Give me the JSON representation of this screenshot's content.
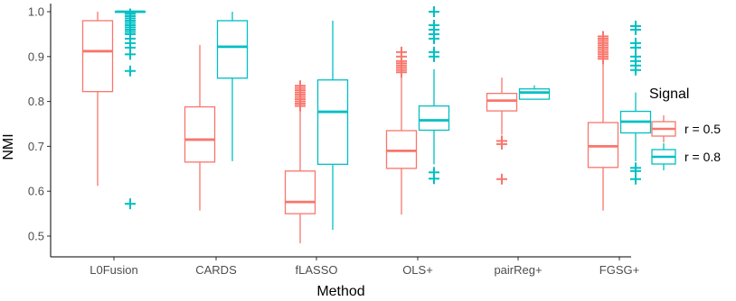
{
  "chart_data": {
    "type": "boxplot",
    "xlabel": "Method",
    "ylabel": "NMI",
    "ylim": [
      0.475,
      1.01
    ],
    "yticks": [
      0.5,
      0.6,
      0.7,
      0.8,
      0.9,
      1.0
    ],
    "ytick_labels": [
      "0.5",
      "0.6",
      "0.7",
      "0.8",
      "0.9",
      "1.0"
    ],
    "categories": [
      "L0Fusion",
      "CARDS",
      "fLASSO",
      "OLS+",
      "pairReg+",
      "FGSG+"
    ],
    "grid": false,
    "legend": {
      "title": "Signal",
      "position": "right",
      "entries": [
        {
          "label": "r = 0.5",
          "color": "#F8766D"
        },
        {
          "label": "r = 0.8",
          "color": "#00BFC4"
        }
      ]
    },
    "series": [
      {
        "name": "r = 0.5",
        "color": "#F8766D",
        "boxes": [
          {
            "category": "L0Fusion",
            "whisker_low": 0.612,
            "q1": 0.822,
            "median": 0.912,
            "q3": 0.98,
            "whisker_high": 1.0,
            "outliers": []
          },
          {
            "category": "CARDS",
            "whisker_low": 0.557,
            "q1": 0.665,
            "median": 0.715,
            "q3": 0.788,
            "whisker_high": 0.926,
            "outliers": []
          },
          {
            "category": "fLASSO",
            "whisker_low": 0.484,
            "q1": 0.55,
            "median": 0.576,
            "q3": 0.645,
            "whisker_high": 0.785,
            "outliers": [
              0.79,
              0.795,
              0.8,
              0.805,
              0.81,
              0.815,
              0.82,
              0.825,
              0.83,
              0.835
            ]
          },
          {
            "category": "OLS+",
            "whisker_low": 0.548,
            "q1": 0.651,
            "median": 0.69,
            "q3": 0.735,
            "whisker_high": 0.86,
            "outliers": [
              0.865,
              0.87,
              0.875,
              0.88,
              0.885,
              0.89,
              0.9,
              0.91
            ]
          },
          {
            "category": "pairReg+",
            "whisker_low": 0.726,
            "q1": 0.779,
            "median": 0.802,
            "q3": 0.818,
            "whisker_high": 0.853,
            "outliers": [
              0.627,
              0.705,
              0.712
            ]
          },
          {
            "category": "FGSG+",
            "whisker_low": 0.557,
            "q1": 0.653,
            "median": 0.7,
            "q3": 0.753,
            "whisker_high": 0.89,
            "outliers": [
              0.895,
              0.9,
              0.905,
              0.91,
              0.915,
              0.92,
              0.925,
              0.93,
              0.935,
              0.94,
              0.945
            ]
          }
        ]
      },
      {
        "name": "r = 0.8",
        "color": "#00BFC4",
        "boxes": [
          {
            "category": "L0Fusion",
            "whisker_low": 1.0,
            "q1": 1.0,
            "median": 1.0,
            "q3": 1.0,
            "whisker_high": 1.0,
            "outliers": [
              0.572,
              0.868,
              0.905,
              0.92,
              0.93,
              0.94,
              0.95,
              0.955,
              0.96,
              0.965,
              0.97,
              0.975,
              0.98,
              0.985,
              0.99,
              0.995
            ]
          },
          {
            "category": "CARDS",
            "whisker_low": 0.667,
            "q1": 0.852,
            "median": 0.922,
            "q3": 0.98,
            "whisker_high": 1.0,
            "outliers": []
          },
          {
            "category": "fLASSO",
            "whisker_low": 0.514,
            "q1": 0.66,
            "median": 0.777,
            "q3": 0.848,
            "whisker_high": 0.98,
            "outliers": []
          },
          {
            "category": "OLS+",
            "whisker_low": 0.66,
            "q1": 0.736,
            "median": 0.758,
            "q3": 0.79,
            "whisker_high": 0.872,
            "outliers": [
              0.628,
              0.642,
              0.9,
              0.91,
              0.94,
              0.95,
              0.96,
              0.97,
              1.0
            ]
          },
          {
            "category": "pairReg+",
            "whisker_low": 0.805,
            "q1": 0.805,
            "median": 0.82,
            "q3": 0.828,
            "whisker_high": 0.836,
            "outliers": []
          },
          {
            "category": "FGSG+",
            "whisker_low": 0.667,
            "q1": 0.73,
            "median": 0.755,
            "q3": 0.778,
            "whisker_high": 0.82,
            "outliers": [
              0.627,
              0.645,
              0.652,
              0.87,
              0.88,
              0.89,
              0.9,
              0.92,
              0.93,
              0.96,
              0.968
            ]
          }
        ]
      }
    ]
  }
}
